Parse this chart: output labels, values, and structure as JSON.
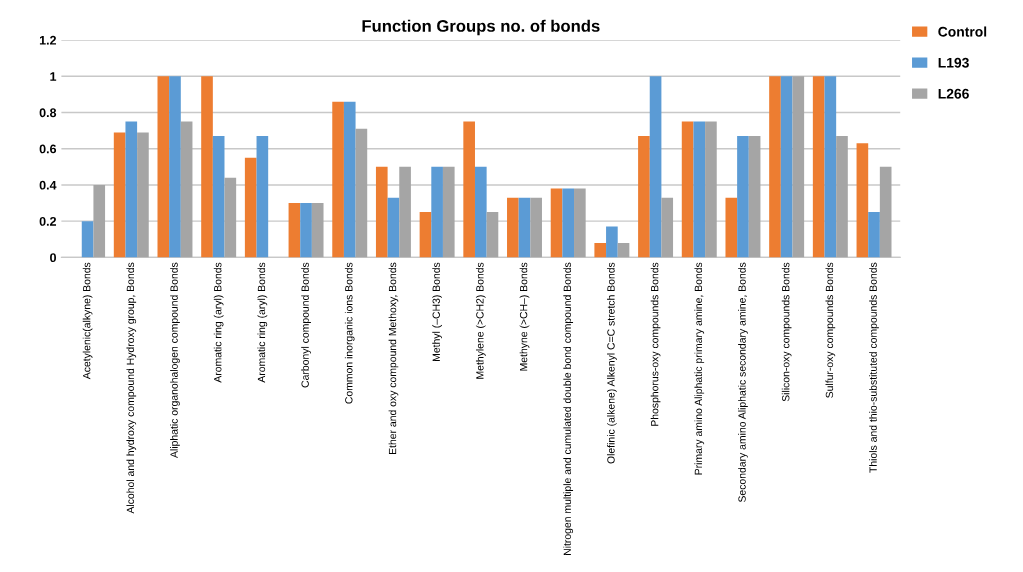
{
  "chart_data": {
    "type": "bar",
    "title": "Function Groups no. of bonds",
    "categories": [
      "Acetylenic(alkyne) Bonds",
      "Alcohol and hydroxy compound Hydroxy group, Bonds",
      "Aliphatic organohalogen compound Bonds",
      "Aromatic ring (aryl) Bonds",
      "Aromatic ring (aryl) Bonds",
      "Carbonyl compound Bonds",
      "Common inorganic ions Bonds",
      "Ether and oxy compound Methoxy, Bonds",
      "Methyl (–CH3) Bonds",
      "Methylene (>CH2) Bonds",
      "Methyne (>CH–) Bonds",
      "Nitrogen multiple and cumulated double bond compound Bonds",
      "Olefinic (alkene) Alkenyl C=C stretch Bonds",
      "Phosphorus-oxy compounds Bonds",
      "Primary amino Aliphatic primary amine, Bonds",
      "Secondary amino Aliphatic secondary amine, Bonds",
      "Silicon-oxy compounds Bonds",
      "Sulfur-oxy compounds Bonds",
      "Thiols and thio-substituted compounds Bonds"
    ],
    "series": [
      {
        "name": "Control",
        "color": "#ed7d31",
        "values": [
          0,
          0.69,
          1,
          1,
          0.55,
          0.3,
          0.86,
          0.5,
          0.25,
          0.75,
          0.33,
          0.38,
          0.08,
          0.67,
          0.75,
          0.33,
          1,
          1,
          0.63
        ]
      },
      {
        "name": "L193",
        "color": "#5b9bd5",
        "values": [
          0.2,
          0.75,
          1,
          0.67,
          0.67,
          0.3,
          0.86,
          0.33,
          0.5,
          0.5,
          0.33,
          0.38,
          0.17,
          1,
          0.75,
          0.67,
          1,
          1,
          0.25
        ]
      },
      {
        "name": "L266",
        "color": "#a5a5a5",
        "values": [
          0.4,
          0.69,
          0.75,
          0.44,
          0,
          0.3,
          0.71,
          0.5,
          0.5,
          0.25,
          0.33,
          0.38,
          0.08,
          0.33,
          0.75,
          0.67,
          1,
          0.67,
          0.5
        ]
      }
    ],
    "ylim": [
      0,
      1.2
    ],
    "yticks": [
      0,
      0.2,
      0.4,
      0.6,
      0.8,
      1,
      1.2
    ],
    "grid": "y",
    "legend": "top right"
  }
}
